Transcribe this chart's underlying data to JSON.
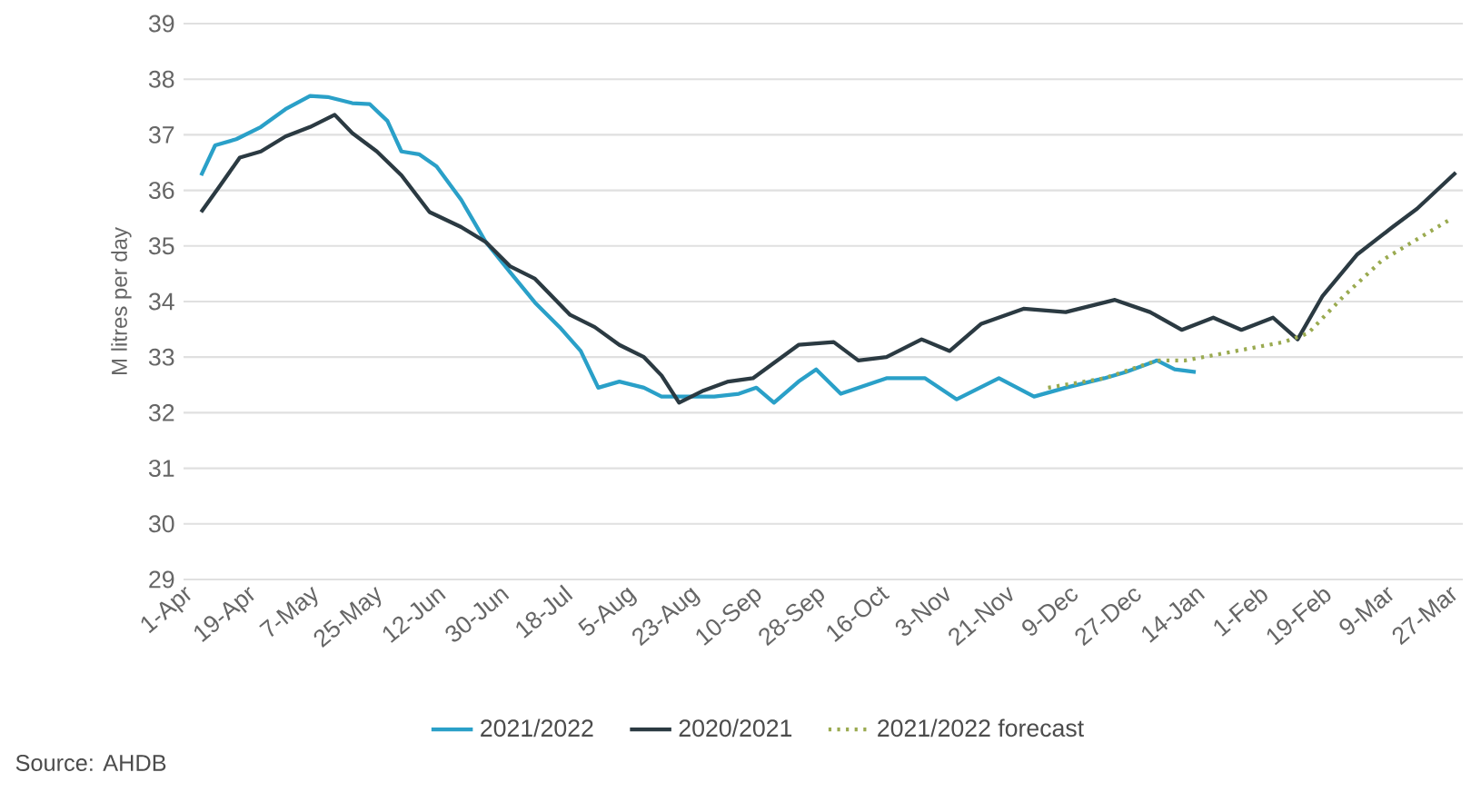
{
  "chart_data": {
    "type": "line",
    "ylabel": "M litres per day",
    "annotations": [
      "Source: AHDB"
    ],
    "xlim": [
      "2021-04-01",
      "2022-03-31"
    ],
    "ylim": [
      29,
      39
    ],
    "yticks": [
      29,
      30,
      31,
      32,
      33,
      34,
      35,
      36,
      37,
      38,
      39
    ],
    "xticks": [
      {
        "value": "2021-04-01",
        "label": "1-Apr"
      },
      {
        "value": "2021-04-19",
        "label": "19-Apr"
      },
      {
        "value": "2021-05-07",
        "label": "7-May"
      },
      {
        "value": "2021-05-25",
        "label": "25-May"
      },
      {
        "value": "2021-06-12",
        "label": "12-Jun"
      },
      {
        "value": "2021-06-30",
        "label": "30-Jun"
      },
      {
        "value": "2021-07-18",
        "label": "18-Jul"
      },
      {
        "value": "2021-08-05",
        "label": "5-Aug"
      },
      {
        "value": "2021-08-23",
        "label": "23-Aug"
      },
      {
        "value": "2021-09-10",
        "label": "10-Sep"
      },
      {
        "value": "2021-09-28",
        "label": "28-Sep"
      },
      {
        "value": "2021-10-16",
        "label": "16-Oct"
      },
      {
        "value": "2021-11-03",
        "label": "3-Nov"
      },
      {
        "value": "2021-11-21",
        "label": "21-Nov"
      },
      {
        "value": "2021-12-09",
        "label": "9-Dec"
      },
      {
        "value": "2021-12-27",
        "label": "27-Dec"
      },
      {
        "value": "2022-01-14",
        "label": "14-Jan"
      },
      {
        "value": "2022-02-01",
        "label": "1-Feb"
      },
      {
        "value": "2022-02-19",
        "label": "19-Feb"
      },
      {
        "value": "2022-03-09",
        "label": "9-Mar"
      },
      {
        "value": "2022-03-27",
        "label": "27-Mar"
      }
    ],
    "grid": "y",
    "legend": "bottom",
    "marker": "none",
    "series": [
      {
        "name": "2021/2022",
        "color": "#2aa0c8",
        "line_style": "solid",
        "x": [
          "2021-04-06",
          "2021-04-10",
          "2021-04-16",
          "2021-04-23",
          "2021-04-30",
          "2021-05-07",
          "2021-05-12",
          "2021-05-19",
          "2021-05-24",
          "2021-05-29",
          "2021-06-02",
          "2021-06-07",
          "2021-06-12",
          "2021-06-19",
          "2021-06-26",
          "2021-07-03",
          "2021-07-10",
          "2021-07-17",
          "2021-07-23",
          "2021-07-28",
          "2021-08-03",
          "2021-08-10",
          "2021-08-15",
          "2021-08-22",
          "2021-08-30",
          "2021-09-06",
          "2021-09-11",
          "2021-09-16",
          "2021-09-23",
          "2021-09-28",
          "2021-10-05",
          "2021-10-18",
          "2021-10-29",
          "2021-11-07",
          "2021-11-19",
          "2021-11-29",
          "2021-12-08",
          "2021-12-19",
          "2021-12-25",
          "2022-01-03",
          "2022-01-08",
          "2022-01-14"
        ],
        "values": [
          36.27,
          36.81,
          36.92,
          37.14,
          37.46,
          37.7,
          37.68,
          37.57,
          37.55,
          37.25,
          36.7,
          36.65,
          36.43,
          35.83,
          35.07,
          34.52,
          33.98,
          33.54,
          33.11,
          32.45,
          32.56,
          32.45,
          32.29,
          32.29,
          32.29,
          32.34,
          32.45,
          32.18,
          32.56,
          32.78,
          32.34,
          32.62,
          32.62,
          32.24,
          32.62,
          32.29,
          32.45,
          32.62,
          32.73,
          32.94,
          32.78,
          32.73
        ]
      },
      {
        "name": "2020/2021",
        "color": "#2b3a42",
        "line_style": "solid",
        "x": [
          "2021-04-06",
          "2021-04-11",
          "2021-04-17",
          "2021-04-23",
          "2021-04-30",
          "2021-05-07",
          "2021-05-14",
          "2021-05-19",
          "2021-05-26",
          "2021-06-02",
          "2021-06-10",
          "2021-06-19",
          "2021-06-26",
          "2021-07-03",
          "2021-07-10",
          "2021-07-20",
          "2021-07-27",
          "2021-08-03",
          "2021-08-10",
          "2021-08-15",
          "2021-08-20",
          "2021-08-27",
          "2021-09-03",
          "2021-09-10",
          "2021-09-23",
          "2021-10-03",
          "2021-10-10",
          "2021-10-18",
          "2021-10-28",
          "2021-11-05",
          "2021-11-14",
          "2021-11-26",
          "2021-12-08",
          "2021-12-22",
          "2022-01-01",
          "2022-01-10",
          "2022-01-19",
          "2022-01-27",
          "2022-02-05",
          "2022-02-12",
          "2022-02-19",
          "2022-03-01",
          "2022-03-11",
          "2022-03-18",
          "2022-03-29"
        ],
        "values": [
          35.61,
          36.05,
          36.59,
          36.7,
          36.97,
          37.14,
          37.36,
          37.03,
          36.7,
          36.27,
          35.61,
          35.34,
          35.07,
          34.63,
          34.41,
          33.76,
          33.54,
          33.22,
          33.0,
          32.67,
          32.18,
          32.4,
          32.56,
          32.62,
          33.22,
          33.27,
          32.94,
          33.0,
          33.32,
          33.11,
          33.6,
          33.87,
          33.81,
          34.03,
          33.81,
          33.49,
          33.71,
          33.49,
          33.71,
          33.32,
          34.09,
          34.85,
          35.34,
          35.67,
          36.32
        ]
      },
      {
        "name": "2021/2022 forecast",
        "color": "#9aaa50",
        "line_style": "dotted",
        "x": [
          "2021-12-03",
          "2021-12-19",
          "2022-01-03",
          "2022-01-11",
          "2022-02-08",
          "2022-02-15",
          "2022-02-25",
          "2022-03-08",
          "2022-03-18",
          "2022-03-28"
        ],
        "values": [
          32.45,
          32.62,
          32.94,
          32.94,
          33.27,
          33.43,
          34.09,
          34.74,
          35.12,
          35.5
        ]
      }
    ]
  }
}
